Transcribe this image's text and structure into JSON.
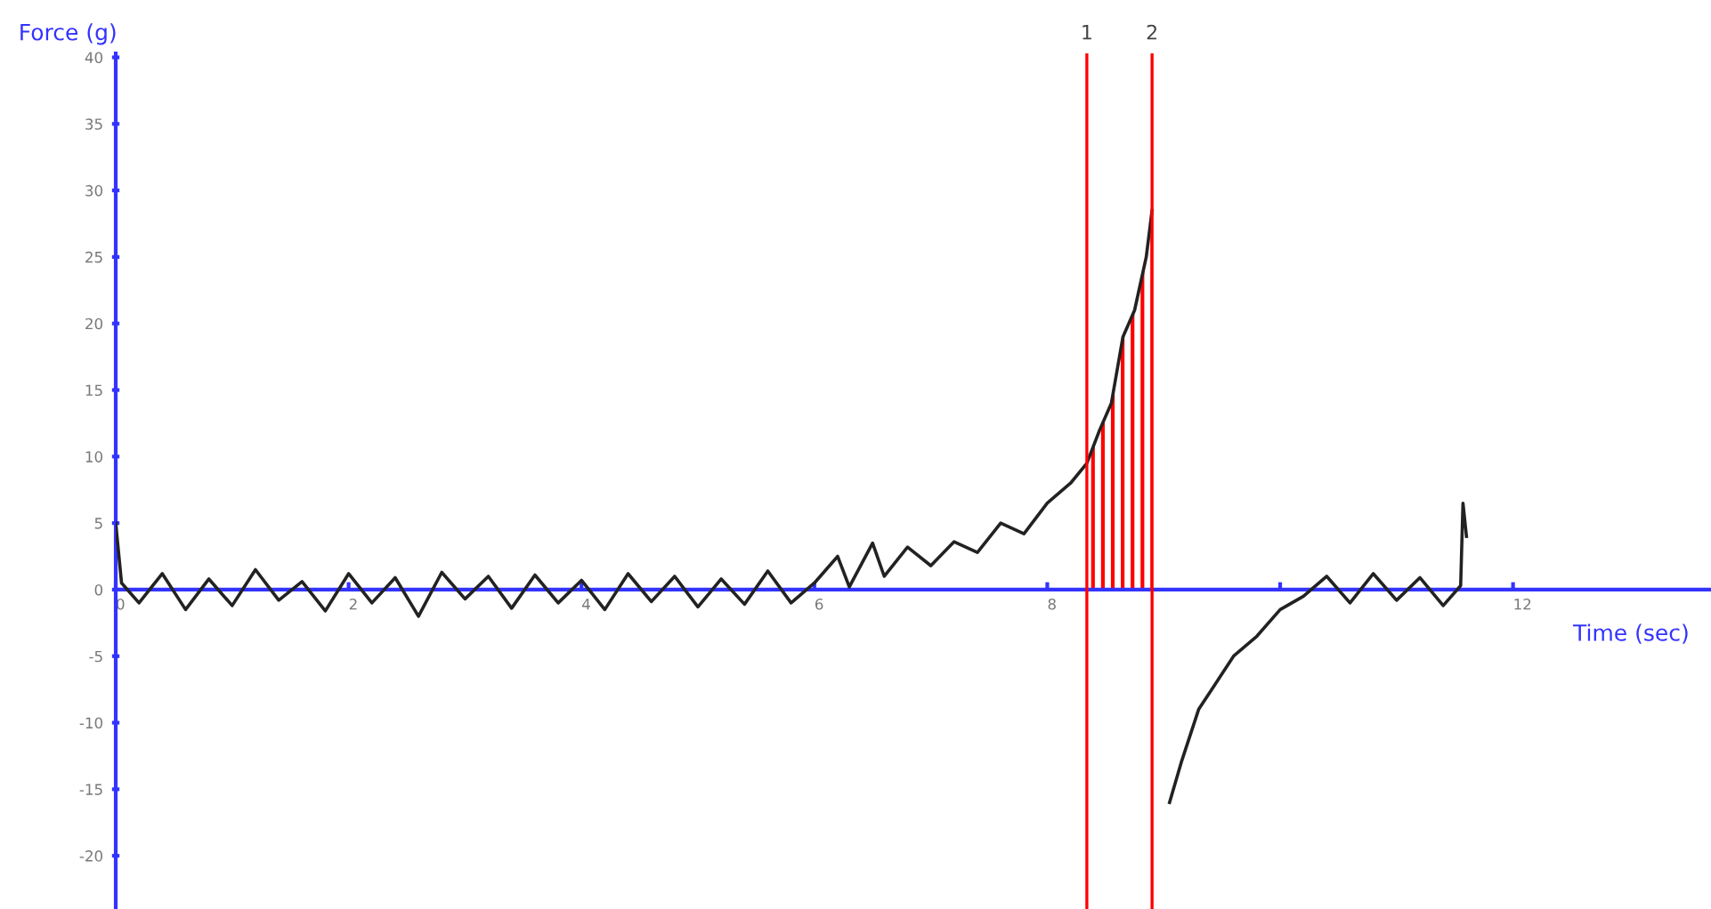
{
  "chart_data": {
    "type": "line",
    "xlabel": "Time (sec)",
    "ylabel": "Force (g)",
    "xlim": [
      0,
      13.7
    ],
    "ylim": [
      -24,
      40.3
    ],
    "xticks": [
      0,
      2,
      4,
      6,
      8,
      {
        "value": 10,
        "label": null
      },
      12
    ],
    "yticks": [
      -20,
      -15,
      -10,
      -5,
      0,
      5,
      10,
      15,
      20,
      25,
      30,
      35,
      40
    ],
    "grid": false,
    "legend": false,
    "series": [
      {
        "color": "#222222",
        "x": [
          0,
          0.05,
          0.2,
          0.4,
          0.6,
          0.8,
          1.0,
          1.2,
          1.4,
          1.6,
          1.8,
          2.0,
          2.2,
          2.4,
          2.6,
          2.8,
          3.0,
          3.2,
          3.4,
          3.6,
          3.8,
          4.0,
          4.2,
          4.4,
          4.6,
          4.8,
          5.0,
          5.2,
          5.4,
          5.6,
          5.8,
          6.0,
          6.2,
          6.3,
          6.5,
          6.6,
          6.8,
          7.0,
          7.2,
          7.4,
          7.6,
          7.8,
          8.0,
          8.2,
          8.34,
          8.45,
          8.55,
          8.65,
          8.75,
          8.85,
          8.9,
          8.92,
          9.0,
          9.05,
          9.15,
          9.3,
          9.45,
          9.6,
          9.8,
          10.0,
          10.2,
          10.4,
          10.6,
          10.8,
          11.0,
          11.2,
          11.4,
          11.55,
          11.57,
          11.6
        ],
        "values": [
          5,
          0.5,
          -1,
          1.2,
          -1.5,
          0.8,
          -1.2,
          1.5,
          -0.8,
          0.6,
          -1.6,
          1.2,
          -1.0,
          0.9,
          -2.0,
          1.3,
          -0.7,
          1.0,
          -1.4,
          1.1,
          -1.0,
          0.7,
          -1.5,
          1.2,
          -0.9,
          1.0,
          -1.3,
          0.8,
          -1.1,
          1.4,
          -1.0,
          0.5,
          2.5,
          0.2,
          3.5,
          1.0,
          3.2,
          1.8,
          3.6,
          2.8,
          5.0,
          4.2,
          6.5,
          8.0,
          9.5,
          12,
          14,
          19,
          21,
          25,
          28.5,
          null,
          null,
          -16,
          -13,
          -9,
          -7,
          -5,
          -3.5,
          -1.5,
          -0.5,
          1.0,
          -1.0,
          1.2,
          -0.8,
          0.9,
          -1.2,
          0.3,
          6.5,
          4.0
        ]
      },
      {
        "type": "area",
        "color": "#ff0000",
        "x": [
          8.34,
          8.45,
          8.55,
          8.65,
          8.75,
          8.85,
          8.9
        ],
        "values": [
          9.5,
          12,
          14,
          19,
          21,
          25,
          28.5
        ]
      }
    ],
    "ref_lines": [
      {
        "axis": "x",
        "value": 8.34,
        "color": "#ff0000"
      },
      {
        "axis": "x",
        "value": 8.9,
        "color": "#ff0000"
      }
    ],
    "annotations": [
      {
        "text": "1",
        "x": 8.34,
        "y": 40.3
      },
      {
        "text": "2",
        "x": 8.9,
        "y": 40.3
      }
    ]
  }
}
